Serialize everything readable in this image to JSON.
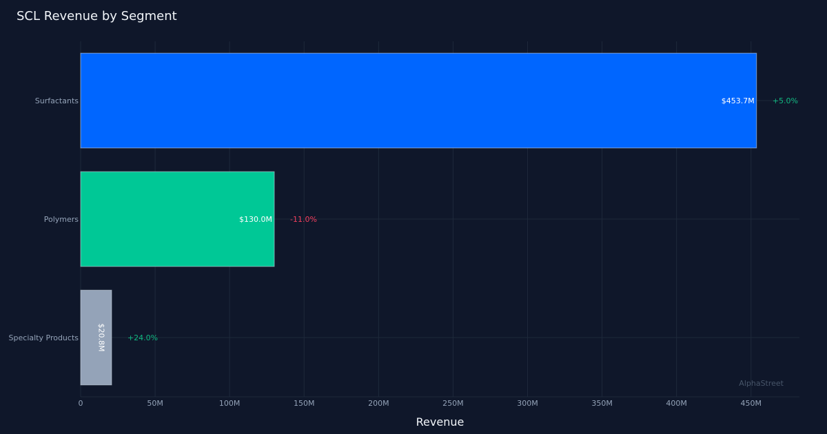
{
  "chart_data": {
    "type": "bar",
    "orientation": "horizontal",
    "title": "SCL Revenue by Segment",
    "xlabel": "Revenue",
    "ylabel": "",
    "categories": [
      "Surfactants",
      "Polymers",
      "Specialty Products"
    ],
    "values": [
      453.7,
      130.0,
      20.8
    ],
    "value_labels": [
      "$453.7M",
      "$130.0M",
      "$20.8M"
    ],
    "change_labels": [
      "+5.0%",
      "-11.0%",
      "+24.0%"
    ],
    "change_colors": [
      "#10b981",
      "#f43f5e",
      "#10b981"
    ],
    "bar_colors": [
      "#0066ff",
      "#00c896",
      "#94a3b8"
    ],
    "xlim": [
      0,
      482.5
    ],
    "xticks": [
      0,
      50,
      100,
      150,
      200,
      250,
      300,
      350,
      400,
      450
    ],
    "xtick_labels": [
      "0",
      "50M",
      "100M",
      "150M",
      "200M",
      "250M",
      "300M",
      "350M",
      "400M",
      "450M"
    ],
    "grid": true,
    "watermark": "AlphaStreet"
  }
}
